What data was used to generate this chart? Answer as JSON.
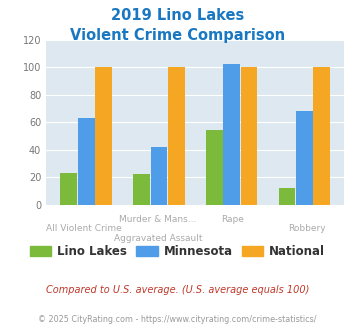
{
  "title_line1": "2019 Lino Lakes",
  "title_line2": "Violent Crime Comparison",
  "cat_labels_line1": [
    "",
    "Murder & Mans...",
    "Rape",
    ""
  ],
  "cat_labels_line2": [
    "All Violent Crime",
    "Aggravated Assault",
    "",
    "Robbery"
  ],
  "lino_lakes": [
    23,
    22,
    54,
    12
  ],
  "minnesota": [
    63,
    42,
    102,
    68
  ],
  "national": [
    100,
    100,
    100,
    100
  ],
  "colors": {
    "lino_lakes": "#7cba3c",
    "minnesota": "#4f9de8",
    "national": "#f5a623"
  },
  "ylim": [
    0,
    120
  ],
  "yticks": [
    0,
    20,
    40,
    60,
    80,
    100,
    120
  ],
  "title_color": "#1a78c2",
  "plot_bg": "#dde8f0",
  "legend_labels": [
    "Lino Lakes",
    "Minnesota",
    "National"
  ],
  "footnote1": "Compared to U.S. average. (U.S. average equals 100)",
  "footnote2": "© 2025 CityRating.com - https://www.cityrating.com/crime-statistics/",
  "footnote1_color": "#c0392b",
  "footnote2_color": "#999999"
}
